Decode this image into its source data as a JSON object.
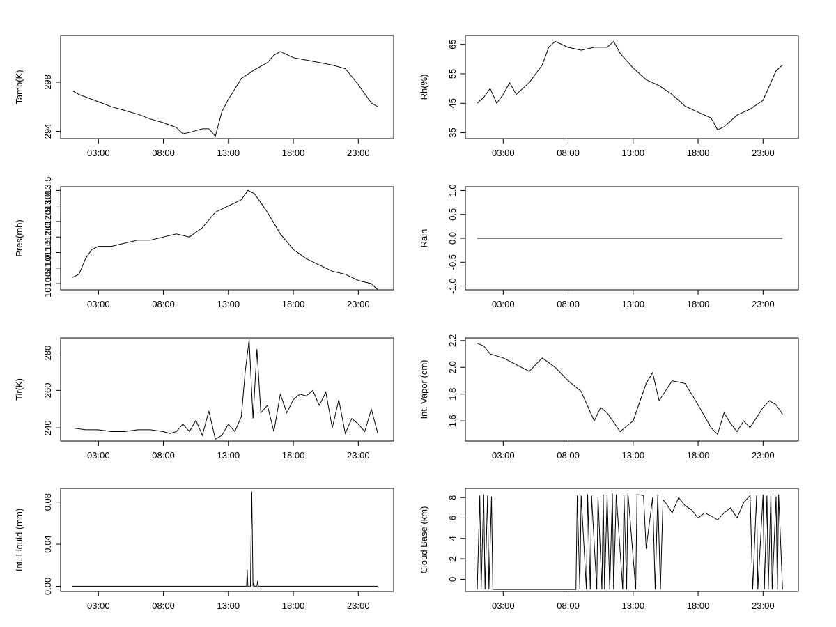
{
  "chart_data": [
    {
      "type": "line",
      "ylabel": "Tamb(K)",
      "xticks": [
        "03:00",
        "08:00",
        "13:00",
        "18:00",
        "23:00"
      ],
      "yticks": [
        "294",
        "298"
      ],
      "ylim": [
        293.4,
        301.8
      ],
      "series": [
        {
          "x": [
            0,
            0.5,
            1,
            2,
            3,
            4,
            5,
            6,
            7,
            8,
            8.5,
            9,
            10,
            10.5,
            11,
            11.5,
            12,
            13,
            14,
            15,
            15.5,
            16,
            17,
            18,
            19,
            20,
            21,
            22,
            23,
            23.5
          ],
          "y": [
            297.3,
            297.0,
            296.8,
            296.4,
            296.0,
            295.7,
            295.4,
            295.0,
            294.7,
            294.3,
            293.8,
            293.9,
            294.2,
            294.2,
            293.6,
            295.6,
            296.6,
            298.3,
            299.0,
            299.6,
            300.2,
            300.5,
            300.0,
            299.8,
            299.6,
            299.4,
            299.1,
            297.8,
            296.3,
            296.0
          ]
        }
      ]
    },
    {
      "type": "line",
      "ylabel": "Rh(%)",
      "xticks": [
        "03:00",
        "08:00",
        "13:00",
        "18:00",
        "23:00"
      ],
      "yticks": [
        "35",
        "45",
        "55",
        "65"
      ],
      "ylim": [
        33,
        68
      ],
      "series": [
        {
          "x": [
            0,
            0.5,
            1,
            1.5,
            2,
            2.5,
            3,
            4,
            5,
            5.5,
            6,
            7,
            8,
            9,
            10,
            10.5,
            11,
            12,
            13,
            14,
            15,
            16,
            17,
            18,
            18.5,
            19,
            20,
            21,
            22,
            23,
            23.5
          ],
          "y": [
            45,
            47,
            50,
            45,
            48,
            52,
            48,
            52,
            58,
            64,
            66,
            64,
            63,
            64,
            64,
            66,
            62,
            57,
            53,
            51,
            48,
            44,
            42,
            40,
            36,
            37,
            41,
            43,
            46,
            56,
            58
          ]
        }
      ]
    },
    {
      "type": "line",
      "ylabel": "Pres(mb)",
      "xticks": [
        "03:00",
        "08:00",
        "13:00",
        "18:00",
        "23:00"
      ],
      "yticks": [
        "1010.5",
        "1011.0",
        "1011.5",
        "1012.0",
        "1012.5",
        "1013.0",
        "1013.5"
      ],
      "ylim": [
        1010.3,
        1013.62
      ],
      "series": [
        {
          "x": [
            0,
            0.5,
            1,
            1.5,
            2,
            3,
            4,
            5,
            6,
            7,
            8,
            9,
            10,
            11,
            12,
            12.5,
            13,
            13.5,
            14,
            15,
            16,
            17,
            18,
            19,
            20,
            21,
            22,
            23,
            23.5
          ],
          "y": [
            1010.7,
            1010.8,
            1011.3,
            1011.6,
            1011.7,
            1011.7,
            1011.8,
            1011.9,
            1011.9,
            1012.0,
            1012.1,
            1012.0,
            1012.3,
            1012.8,
            1013.0,
            1013.1,
            1013.2,
            1013.5,
            1013.4,
            1012.8,
            1012.1,
            1011.6,
            1011.3,
            1011.1,
            1010.9,
            1010.8,
            1010.6,
            1010.5,
            1010.3
          ]
        }
      ]
    },
    {
      "type": "line",
      "ylabel": "Rain",
      "xticks": [
        "03:00",
        "08:00",
        "13:00",
        "18:00",
        "23:00"
      ],
      "yticks": [
        "-1.0",
        "-0.5",
        "0.0",
        "0.5",
        "1.0"
      ],
      "ylim": [
        -1.08,
        1.08
      ],
      "series": [
        {
          "x": [
            0,
            23.5
          ],
          "y": [
            0,
            0
          ]
        }
      ]
    },
    {
      "type": "line",
      "ylabel": "Tir(K)",
      "xticks": [
        "03:00",
        "08:00",
        "13:00",
        "18:00",
        "23:00"
      ],
      "yticks": [
        "240",
        "260",
        "280"
      ],
      "ylim": [
        233,
        288
      ],
      "series": [
        {
          "x": [
            0,
            1,
            2,
            3,
            4,
            5,
            6,
            7,
            7.5,
            8,
            8.5,
            9,
            9.5,
            10,
            10.5,
            11,
            11.5,
            12,
            12.5,
            13,
            13.3,
            13.6,
            13.9,
            14.2,
            14.5,
            15,
            15.5,
            16,
            16.5,
            17,
            17.5,
            18,
            18.5,
            19,
            19.5,
            20,
            20.5,
            21,
            21.5,
            22,
            22.5,
            23,
            23.5
          ],
          "y": [
            240,
            239,
            239,
            238,
            238,
            239,
            239,
            238,
            237,
            238,
            242,
            238,
            244,
            236,
            249,
            234,
            236,
            242,
            238,
            246,
            270,
            287,
            245,
            282,
            248,
            252,
            238,
            258,
            248,
            255,
            258,
            257,
            260,
            252,
            259,
            240,
            255,
            237,
            245,
            242,
            238,
            250,
            237
          ]
        }
      ]
    },
    {
      "type": "line",
      "ylabel": "Int. Vapor (cm)",
      "xticks": [
        "03:00",
        "08:00",
        "13:00",
        "18:00",
        "23:00"
      ],
      "yticks": [
        "1.6",
        "1.8",
        "2.0",
        "2.2"
      ],
      "ylim": [
        1.45,
        2.22
      ],
      "series": [
        {
          "x": [
            0,
            0.5,
            1,
            2,
            3,
            4,
            5,
            6,
            7,
            8,
            9,
            9.5,
            10,
            11,
            12,
            13,
            13.5,
            14,
            15,
            16,
            17,
            18,
            18.5,
            19,
            19.5,
            20,
            20.5,
            21,
            22,
            22.5,
            23,
            23.5
          ],
          "y": [
            2.18,
            2.16,
            2.1,
            2.07,
            2.02,
            1.97,
            2.07,
            2.0,
            1.9,
            1.82,
            1.6,
            1.7,
            1.66,
            1.52,
            1.6,
            1.88,
            1.96,
            1.75,
            1.9,
            1.88,
            1.72,
            1.55,
            1.5,
            1.66,
            1.58,
            1.52,
            1.6,
            1.55,
            1.7,
            1.75,
            1.72,
            1.65
          ]
        }
      ]
    },
    {
      "type": "line",
      "ylabel": "Int. Liquid (mm)",
      "xticks": [
        "03:00",
        "08:00",
        "13:00",
        "18:00",
        "23:00"
      ],
      "yticks": [
        "0.00",
        "0.04",
        "0.08"
      ],
      "ylim": [
        -0.005,
        0.093
      ],
      "series": [
        {
          "x": [
            0,
            13.4,
            13.45,
            13.5,
            13.7,
            13.75,
            13.8,
            13.9,
            13.95,
            14.0,
            14.2,
            14.25,
            14.3,
            23.5
          ],
          "y": [
            0,
            0,
            0.016,
            0,
            0,
            0.047,
            0.09,
            0,
            0.003,
            0,
            0,
            0.005,
            0,
            0
          ]
        }
      ]
    },
    {
      "type": "line",
      "ylabel": "Cloud Base (km)",
      "xticks": [
        "03:00",
        "08:00",
        "13:00",
        "18:00",
        "23:00"
      ],
      "yticks": [
        "0",
        "2",
        "4",
        "6",
        "8"
      ],
      "ylim": [
        -1.2,
        8.9
      ],
      "series": [
        {
          "x": [
            0,
            0.2,
            0.3,
            0.5,
            0.6,
            0.8,
            0.9,
            1.1,
            1.2,
            7.6,
            7.7,
            7.9,
            8.0,
            8.4,
            8.5,
            8.7,
            8.8,
            9.2,
            9.3,
            9.6,
            9.7,
            9.8,
            10.0,
            10.2,
            10.4,
            10.5,
            10.7,
            11.2,
            11.3,
            11.5,
            11.6,
            12.2,
            12.3,
            12.8,
            13.0,
            13.5,
            13.7,
            13.9,
            14.1,
            14.3,
            14.5,
            15,
            15.5,
            16,
            16.5,
            17,
            17.5,
            18,
            18.5,
            19,
            19.5,
            20,
            20.5,
            21,
            21.2,
            21.5,
            21.6,
            22.0,
            22.1,
            22.3,
            22.4,
            22.6,
            22.7,
            23.0,
            23.1,
            23.2,
            23.5
          ],
          "y": [
            -1,
            8.2,
            -1,
            8.3,
            -1,
            8.2,
            -1,
            8.1,
            -1,
            -1,
            8.2,
            -1,
            8.2,
            -1,
            8.3,
            -1,
            8.2,
            -1,
            8.1,
            -1,
            8.3,
            -1,
            8.2,
            -1,
            8.4,
            -1,
            8.3,
            -1,
            8.2,
            -1,
            8.5,
            -1,
            8.3,
            8.2,
            3,
            8.0,
            -1,
            8.3,
            -1,
            7.8,
            7.5,
            6.5,
            8,
            7.2,
            6.8,
            6.0,
            6.5,
            6.2,
            5.8,
            6.5,
            7.0,
            6.0,
            7.5,
            8.2,
            -1,
            8.2,
            -1,
            8.3,
            -1,
            8.2,
            -1,
            8.4,
            -1,
            8.1,
            -1,
            8.3,
            -1
          ]
        }
      ]
    }
  ]
}
